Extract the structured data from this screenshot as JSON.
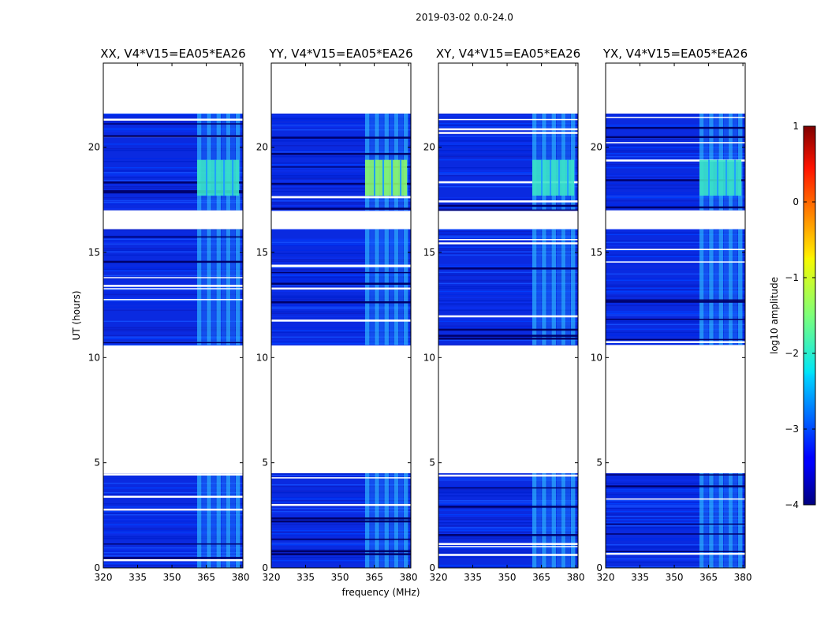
{
  "chart_data": {
    "type": "heatmap",
    "title": "2019-03-02 0.0-24.0",
    "xlabel": "frequency (MHz)",
    "ylabel": "UT (hours)",
    "xlim": [
      320,
      381
    ],
    "ylim": [
      0,
      24
    ],
    "xticks": [
      320,
      335,
      350,
      365,
      380
    ],
    "yticks": [
      0,
      5,
      10,
      15,
      20
    ],
    "panels": [
      {
        "title": "XX, V4*V15=EA05*EA26",
        "pol": "XX"
      },
      {
        "title": "YY, V4*V15=EA05*EA26",
        "pol": "YY"
      },
      {
        "title": "XY, V4*V15=EA05*EA26",
        "pol": "XY"
      },
      {
        "title": "YX, V4*V15=EA05*EA26",
        "pol": "YX"
      }
    ],
    "data_blocks_hours": [
      [
        0.0,
        4.5
      ],
      [
        10.6,
        16.1
      ],
      [
        17.0,
        21.6
      ]
    ],
    "flagged_gaps_hours": [
      [
        4.5,
        10.6
      ],
      [
        16.1,
        17.0
      ],
      [
        21.6,
        24.0
      ]
    ],
    "rfi_frequency_band_mhz": [
      361,
      380
    ],
    "rfi_strong_hours": [
      17.7,
      19.4
    ],
    "colorbar": {
      "label": "log10 amplitude",
      "min": -4,
      "max": 1,
      "ticks": [
        1,
        0,
        -1,
        -2,
        -3,
        -4
      ],
      "tick_labels": [
        "1",
        "0",
        "−1",
        "−2",
        "−3",
        "−4"
      ],
      "colormap": "jet"
    }
  }
}
